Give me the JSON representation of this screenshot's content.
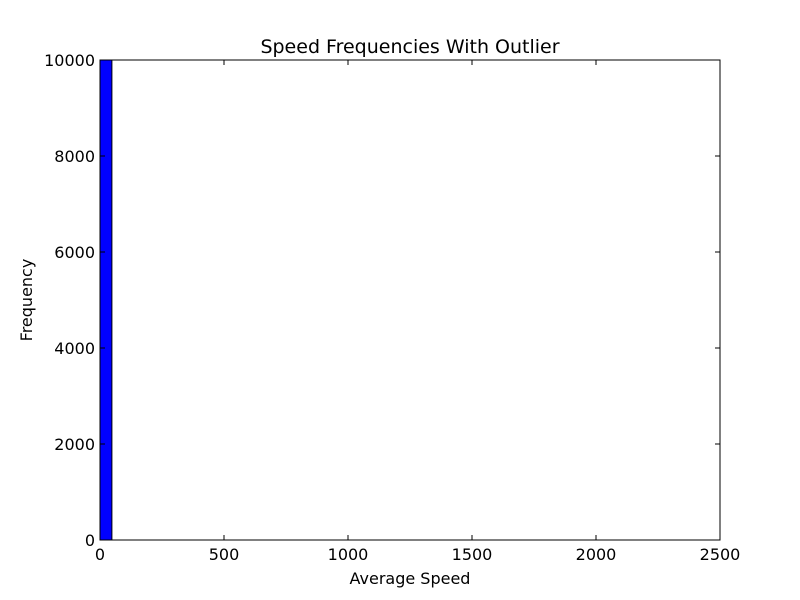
{
  "chart_data": {
    "type": "bar",
    "title": "Speed Frequencies With Outlier",
    "xlabel": "Average Speed",
    "ylabel": "Frequency",
    "xlim": [
      0,
      2500
    ],
    "ylim": [
      0,
      10000
    ],
    "xticks": [
      "0",
      "500",
      "1000",
      "1500",
      "2000",
      "2500"
    ],
    "yticks": [
      "0",
      "2000",
      "4000",
      "6000",
      "8000",
      "10000"
    ],
    "bins": [
      {
        "start": 0,
        "end": 48,
        "value": 10000
      }
    ],
    "bar_color": "#0000ff",
    "grid": false
  }
}
